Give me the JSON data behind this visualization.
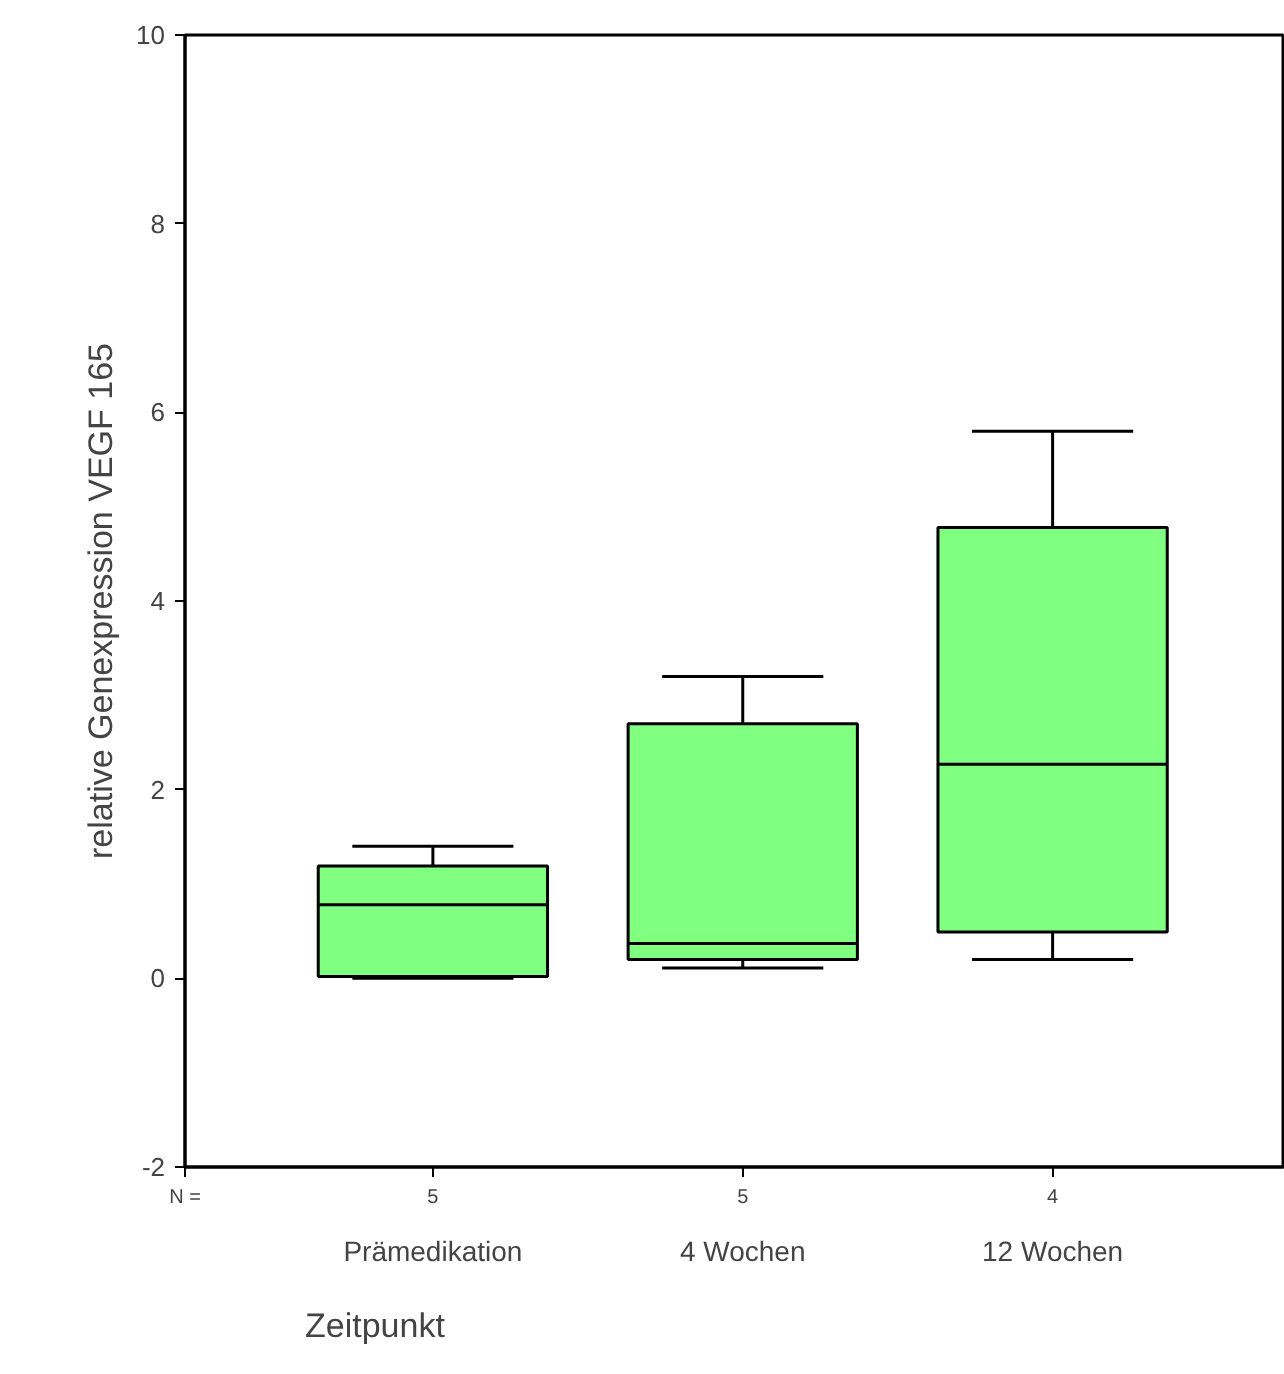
{
  "chart_data": {
    "type": "box",
    "xlabel": "Zeitpunkt",
    "ylabel": "relative Genexpression VEGF 165",
    "categories": [
      "Prämedikation",
      "4 Wochen",
      "12 Wochen"
    ],
    "series": [
      {
        "color": "#80ff80",
        "boxes": [
          {
            "low": 0.0,
            "q1": 0.02,
            "median": 0.78,
            "q3": 1.19,
            "high": 1.4
          },
          {
            "low": 0.11,
            "q1": 0.2,
            "median": 0.37,
            "q3": 2.7,
            "high": 3.2
          },
          {
            "low": 0.2,
            "q1": 0.49,
            "median": 2.27,
            "q3": 4.78,
            "high": 5.8
          }
        ]
      }
    ],
    "ylim": [
      -2,
      10
    ],
    "yticks": [
      -2,
      0,
      2,
      4,
      6,
      8,
      10
    ],
    "grid": false,
    "annotations": [
      "N =",
      "5",
      "5",
      "4"
    ]
  }
}
